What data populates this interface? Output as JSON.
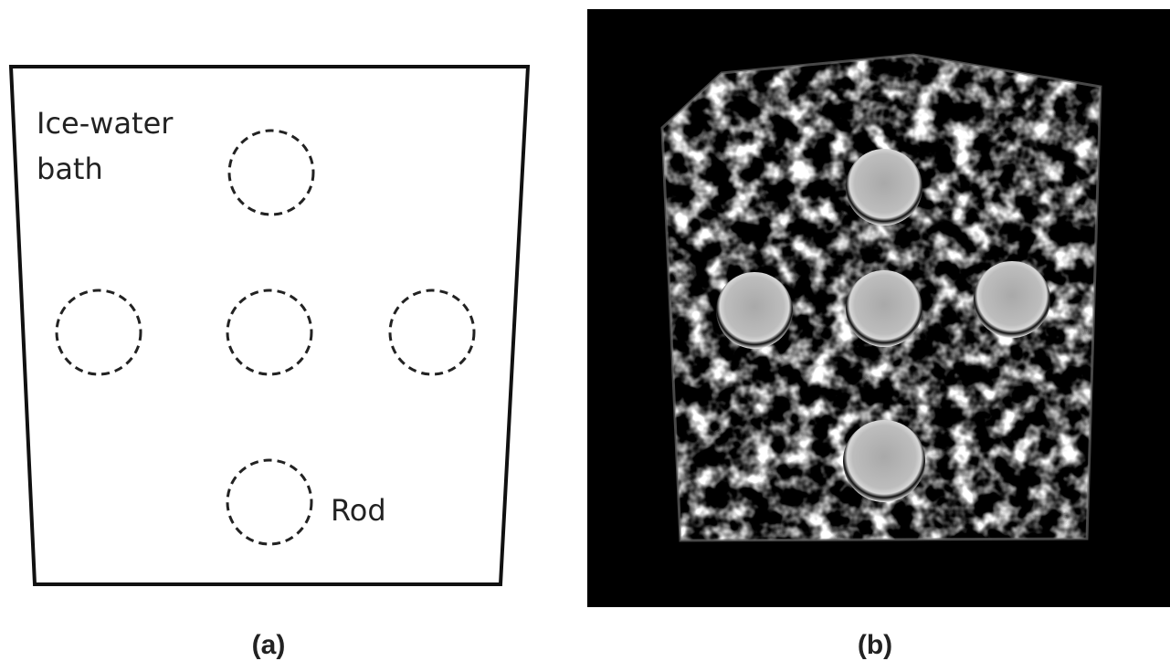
{
  "panel_a": {
    "bath_label": [
      "Ice-water",
      "bath"
    ],
    "rod_label": "Rod",
    "caption": "(a)"
  },
  "panel_b": {
    "caption": "(b)"
  }
}
